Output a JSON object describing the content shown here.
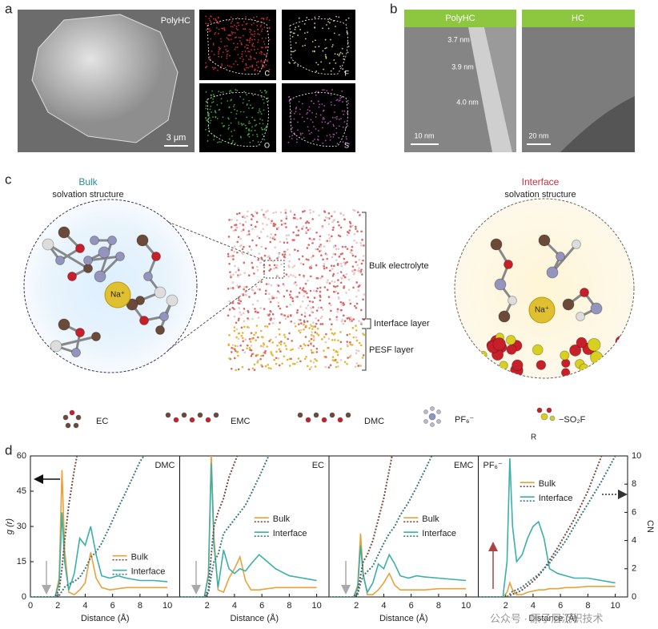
{
  "panel_a": {
    "label": "a",
    "sem_label": "PolyHC",
    "scale_bar": "3 μm",
    "maps": [
      "C",
      "F",
      "O",
      "S"
    ]
  },
  "panel_b": {
    "label": "b",
    "images": [
      {
        "title": "PolyHC",
        "scale_bar": "10 nm",
        "thickness": [
          "3.7 nm",
          "3.9 nm",
          "4.0 nm"
        ]
      },
      {
        "title": "HC",
        "scale_bar": "20 nm"
      }
    ]
  },
  "panel_c": {
    "label": "c",
    "bulk": {
      "title": "Bulk",
      "subtitle": "solvation structure",
      "ion": "Na⁺"
    },
    "layers": [
      "Bulk electrolyte",
      "Interface layer",
      "PESF layer"
    ],
    "interface": {
      "title": "Interface",
      "subtitle": "solvation structure",
      "ion": "Na⁺"
    },
    "legend": [
      "EC",
      "EMC",
      "DMC",
      "PF₆⁻",
      "R",
      "−SO₂F"
    ]
  },
  "panel_d": {
    "label": "d",
    "watermark": "公众号 · 原子层沉积技术"
  },
  "chart_data": [
    {
      "type": "line",
      "title": "DMC",
      "title_corner": "upper right",
      "legend": "lower right",
      "xlabel": "Distance (Å)",
      "ylabel": "g (r)",
      "x": [
        0,
        1,
        1.8,
        2.1,
        2.3,
        2.5,
        2.8,
        3.2,
        3.6,
        4,
        4.4,
        4.8,
        5.2,
        5.8,
        6.4,
        7,
        8,
        9,
        10
      ],
      "xlim": [
        0,
        10.9
      ],
      "xticks": [
        0,
        2,
        4,
        6,
        8,
        10
      ],
      "ylim": [
        0,
        60
      ],
      "yticks": [
        0,
        15,
        30,
        45,
        60
      ],
      "y2lim": [
        0,
        10
      ],
      "series": [
        {
          "name": "Bulk",
          "color": "#e8a23a",
          "values": [
            0,
            0,
            0,
            8,
            54,
            20,
            2,
            1,
            3,
            6,
            19,
            8,
            4,
            3,
            3.5,
            4,
            4,
            4,
            4
          ]
        },
        {
          "name": "Interface",
          "color": "#3ab0a8",
          "values": [
            0,
            0,
            0,
            6,
            36,
            15,
            3,
            10,
            25,
            22,
            30,
            18,
            9,
            8,
            9,
            8,
            7,
            7,
            6.5
          ]
        },
        {
          "color": "#7a4a40",
          "axis": "y2",
          "line_style": "dotted",
          "values": [
            0,
            0,
            0,
            0.5,
            2,
            4,
            6.5,
            9,
            11,
            null,
            null,
            null,
            null,
            null,
            null,
            null,
            null,
            null,
            null
          ]
        },
        {
          "color": "#3a7a80",
          "axis": "y2",
          "line_style": "dotted",
          "values": [
            0,
            0,
            0,
            0.1,
            0.4,
            0.7,
            0.9,
            1.1,
            1.4,
            2,
            2.8,
            3.2,
            3.8,
            5,
            6.3,
            7.5,
            9.6,
            11,
            null
          ]
        }
      ]
    },
    {
      "type": "line",
      "title": "EC",
      "title_corner": "upper right",
      "legend": "center right",
      "xlabel": "Distance (Å)",
      "x": [
        0,
        1,
        1.8,
        2.1,
        2.3,
        2.5,
        2.8,
        3.2,
        3.6,
        4,
        4.4,
        4.8,
        5.2,
        5.8,
        6.4,
        7,
        8,
        9,
        10
      ],
      "xlim": [
        0,
        10.9
      ],
      "xticks": [
        2,
        4,
        6,
        8,
        10
      ],
      "ylim": [
        0,
        60
      ],
      "y2lim": [
        0,
        10
      ],
      "series": [
        {
          "name": "Bulk",
          "color": "#e8a23a",
          "values": [
            0,
            0,
            0,
            10,
            61,
            25,
            3,
            2,
            8,
            12,
            17,
            7,
            3,
            3,
            3.5,
            4,
            4,
            4,
            4
          ]
        },
        {
          "name": "Interface",
          "color": "#3ab0a8",
          "values": [
            0,
            0,
            0,
            9,
            57,
            22,
            4,
            20,
            12,
            10,
            12,
            11,
            14,
            18,
            15,
            12,
            9,
            8,
            7
          ]
        },
        {
          "color": "#7a4a40",
          "axis": "y2",
          "line_style": "dotted",
          "values": [
            0,
            0,
            0,
            0.5,
            3,
            5,
            6,
            7,
            8.5,
            9.5,
            10.5,
            null,
            null,
            null,
            null,
            null,
            null,
            null,
            null
          ]
        },
        {
          "color": "#3a7a80",
          "axis": "y2",
          "line_style": "dotted",
          "values": [
            0,
            0,
            0,
            0.3,
            1.5,
            2.5,
            3,
            4.5,
            5,
            5.5,
            6,
            6.5,
            7.3,
            8.5,
            9.8,
            11,
            null,
            null,
            null
          ]
        }
      ]
    },
    {
      "type": "line",
      "title": "EMC",
      "title_corner": "upper right",
      "legend": "center right",
      "xlabel": "Distance (Å)",
      "x": [
        0,
        1,
        1.8,
        2.1,
        2.3,
        2.5,
        2.8,
        3.2,
        3.6,
        4,
        4.4,
        4.8,
        5.2,
        5.8,
        6.4,
        7,
        8,
        9,
        10
      ],
      "xlim": [
        0,
        10.9
      ],
      "xticks": [
        2,
        4,
        6,
        8,
        10
      ],
      "ylim": [
        0,
        60
      ],
      "y2lim": [
        0,
        10
      ],
      "series": [
        {
          "name": "Bulk",
          "color": "#e8a23a",
          "values": [
            0,
            0,
            0,
            5,
            27,
            10,
            1,
            1,
            3,
            6,
            10,
            5,
            3,
            3,
            3,
            3,
            3.5,
            3.5,
            3.5
          ]
        },
        {
          "name": "Interface",
          "color": "#3ab0a8",
          "values": [
            0,
            0,
            0,
            4,
            22,
            9,
            2,
            6,
            14,
            12,
            18,
            14,
            9,
            8,
            9,
            8.5,
            8,
            7.5,
            7
          ]
        },
        {
          "color": "#7a4a40",
          "axis": "y2",
          "line_style": "dotted",
          "values": [
            0,
            0,
            0,
            0.3,
            1.5,
            2.5,
            3,
            4,
            5.5,
            7,
            9,
            11,
            null,
            null,
            null,
            null,
            null,
            null,
            null
          ]
        },
        {
          "color": "#3a7a80",
          "axis": "y2",
          "line_style": "dotted",
          "values": [
            0,
            0,
            0,
            0.2,
            1,
            1.5,
            1.8,
            2.2,
            3,
            3.8,
            4.5,
            5,
            5.8,
            6.7,
            7.8,
            9,
            11,
            null,
            null
          ]
        }
      ]
    },
    {
      "type": "line",
      "title": "PF₆⁻",
      "title_corner": "upper left",
      "legend": "upper left",
      "xlabel": "Distance (Å)",
      "y2label": "CN",
      "x": [
        0,
        1,
        1.8,
        2.1,
        2.3,
        2.5,
        2.8,
        3.2,
        3.6,
        4,
        4.4,
        4.8,
        5.2,
        5.8,
        6.4,
        7,
        8,
        9,
        10
      ],
      "xlim": [
        0,
        10.9
      ],
      "xticks": [
        2,
        4,
        6,
        8,
        10
      ],
      "ylim": [
        0,
        60
      ],
      "y2lim": [
        0,
        10
      ],
      "y2ticks": [
        0,
        2,
        4,
        6,
        8,
        10
      ],
      "series": [
        {
          "name": "Bulk",
          "color": "#e8a23a",
          "values": [
            0,
            0,
            0,
            2,
            6,
            3,
            1,
            1,
            2,
            2.5,
            3,
            3,
            3.5,
            3.5,
            4,
            4,
            4.5,
            4.5,
            4.5
          ]
        },
        {
          "name": "Interface",
          "color": "#3ab0a8",
          "values": [
            0,
            0,
            0,
            15,
            59,
            30,
            15,
            18,
            25,
            30,
            32,
            25,
            12,
            10,
            9,
            8,
            8,
            7,
            6
          ]
        },
        {
          "color": "#7a4a40",
          "axis": "y2",
          "line_style": "dotted",
          "values": [
            0,
            0,
            0,
            0,
            0.1,
            0.2,
            0.3,
            0.5,
            0.8,
            1.1,
            1.5,
            2,
            2.6,
            3.5,
            4.5,
            5.5,
            7.5,
            10,
            null
          ]
        },
        {
          "color": "#3a7a80",
          "axis": "y2",
          "line_style": "dotted",
          "values": [
            0,
            0,
            0,
            0,
            0.2,
            0.4,
            0.5,
            0.7,
            1,
            1.3,
            1.6,
            2,
            2.4,
            3.2,
            4,
            5,
            6.6,
            8.2,
            10
          ]
        }
      ]
    }
  ]
}
